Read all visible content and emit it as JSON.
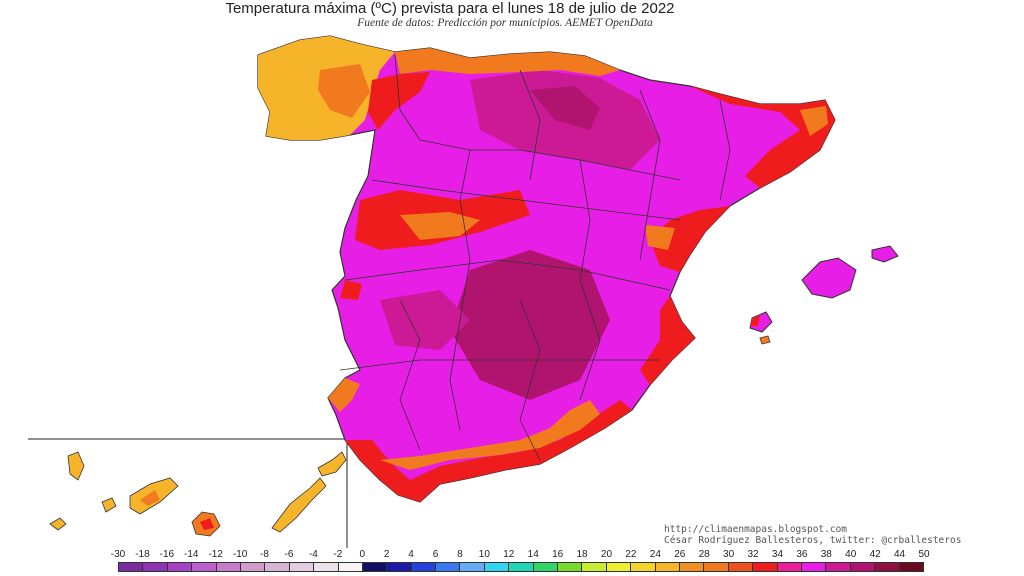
{
  "header": {
    "title": "Temperatura máxima (ºC) prevista para el lunes 18 de julio de 2022",
    "subtitle": "Fuente de datos: Predicción por municipios. AEMET OpenData"
  },
  "credits": {
    "url": "http://climaenmapas.blogspot.com",
    "author": "César Rodríguez Ballesteros, twitter: @crballesteros"
  },
  "legend": {
    "labels": [
      "-30",
      "-18",
      "-16",
      "-14",
      "-12",
      "-10",
      "-8",
      "-6",
      "-4",
      "-2",
      "0",
      "2",
      "4",
      "6",
      "8",
      "10",
      "12",
      "14",
      "16",
      "18",
      "20",
      "22",
      "24",
      "26",
      "28",
      "30",
      "32",
      "34",
      "36",
      "38",
      "40",
      "42",
      "44",
      "50"
    ],
    "colors": [
      "#7a2c9c",
      "#8c35b4",
      "#a443c6",
      "#bb5ccf",
      "#c77bc9",
      "#d09ac9",
      "#d8b4d4",
      "#e3cce0",
      "#ece2ea",
      "#f7f3f6",
      "#101066",
      "#1a1aa6",
      "#2244dd",
      "#3a78f0",
      "#66aaf8",
      "#33d4ee",
      "#22d6b4",
      "#33d466",
      "#7ada2c",
      "#c8ec33",
      "#eeee33",
      "#f6d42c",
      "#f6b42a",
      "#f09022",
      "#f27a1e",
      "#ef5020",
      "#ee1c1c",
      "#ee1e96",
      "#e61ee6",
      "#cc1a96",
      "#b0146e",
      "#8e1040",
      "#6a0a22"
    ]
  },
  "map": {
    "region_name": "Península Ibérica, Baleares y Canarias",
    "palette": {
      "yellow": "#f6b42a",
      "orange": "#f27a1e",
      "red": "#ee1c1c",
      "magenta": "#e61ee6",
      "purple": "#cc1a96",
      "maroon": "#b0146e"
    }
  }
}
